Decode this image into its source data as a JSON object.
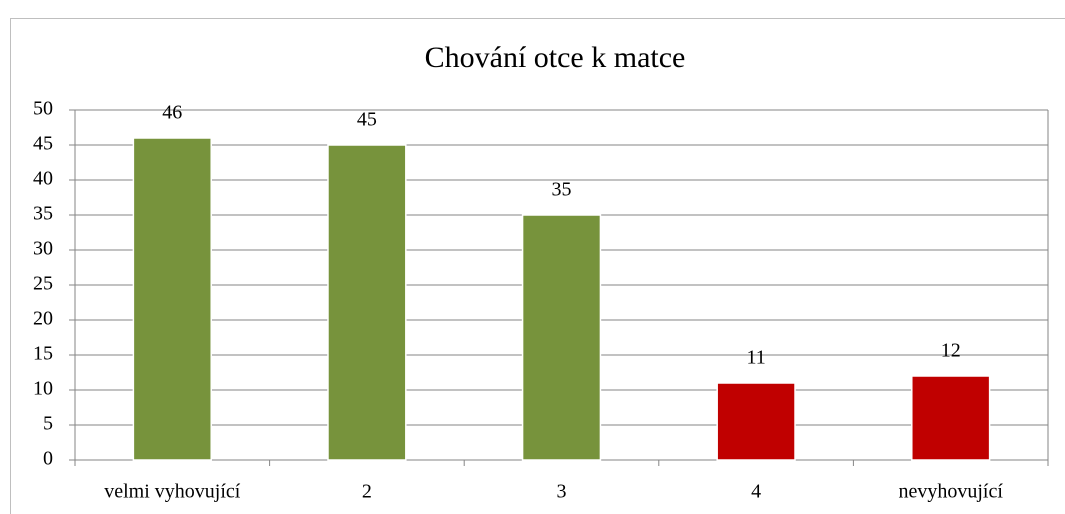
{
  "chart_data": {
    "type": "bar",
    "title": "Chování otce k matce",
    "categories": [
      "velmi vyhovující",
      "2",
      "3",
      "4",
      "nevyhovující"
    ],
    "values": [
      46,
      45,
      35,
      11,
      12
    ],
    "colors": [
      "#77933c",
      "#77933c",
      "#77933c",
      "#c00000",
      "#c00000"
    ],
    "ylim": [
      0,
      50
    ],
    "yticks": [
      0,
      5,
      10,
      15,
      20,
      25,
      30,
      35,
      40,
      45,
      50
    ],
    "grid": true
  }
}
